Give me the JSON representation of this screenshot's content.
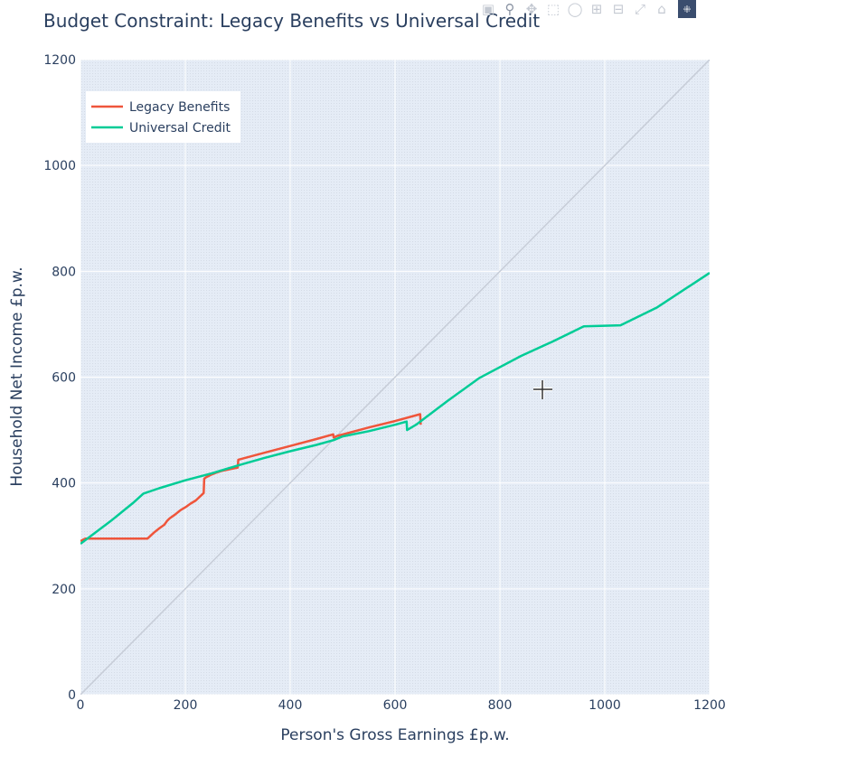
{
  "chart_data": {
    "type": "line",
    "title": "Budget Constraint: Legacy Benefits vs Universal Credit",
    "xlabel": "Person's Gross Earnings £p.w.",
    "ylabel": "Household Net Income £p.w.",
    "xlim": [
      0,
      1200
    ],
    "ylim": [
      0,
      1200
    ],
    "xticks": [
      0,
      200,
      400,
      600,
      800,
      1000,
      1200
    ],
    "yticks": [
      0,
      200,
      400,
      600,
      800,
      1000,
      1200
    ],
    "grid": true,
    "legend_position": "top-left",
    "series": [
      {
        "name": "Legacy Benefits",
        "color": "#ef553b",
        "x": [
          0,
          5,
          10,
          20,
          50,
          100,
          128,
          140,
          150,
          160,
          165,
          170,
          180,
          190,
          200,
          210,
          220,
          235,
          236,
          240,
          250,
          260,
          270,
          280,
          290,
          300,
          301,
          350,
          400,
          450,
          482,
          483,
          490,
          550,
          600,
          648,
          649
        ],
        "y": [
          290,
          293,
          295,
          295,
          295,
          295,
          295,
          306,
          314,
          321,
          328,
          333,
          340,
          348,
          354,
          361,
          367,
          381,
          408,
          411,
          416,
          420,
          423,
          425,
          427,
          429,
          444,
          457,
          470,
          483,
          492,
          486,
          489,
          505,
          517,
          530,
          510
        ]
      },
      {
        "name": "Universal Credit",
        "color": "#00cc96",
        "x": [
          0,
          20,
          60,
          100,
          120,
          150,
          200,
          250,
          300,
          350,
          400,
          450,
          483,
          500,
          550,
          600,
          622,
          623,
          640,
          700,
          760,
          840,
          900,
          960,
          1030,
          1100,
          1200
        ],
        "y": [
          285,
          300,
          330,
          362,
          380,
          390,
          405,
          418,
          433,
          447,
          460,
          472,
          481,
          488,
          498,
          510,
          516,
          500,
          510,
          555,
          598,
          640,
          667,
          696,
          698,
          732,
          797
        ]
      },
      {
        "name": "",
        "color": "#c7cdd8",
        "x": [
          0,
          1200
        ],
        "y": [
          0,
          1200
        ]
      }
    ]
  },
  "toolbar": {
    "icons": [
      "camera-icon",
      "zoom-icon",
      "pan-icon",
      "box-select-icon",
      "lasso-select-icon",
      "zoom-in-icon",
      "zoom-out-icon",
      "autoscale-icon",
      "reset-axes-icon",
      "plotly-logo-icon"
    ]
  }
}
